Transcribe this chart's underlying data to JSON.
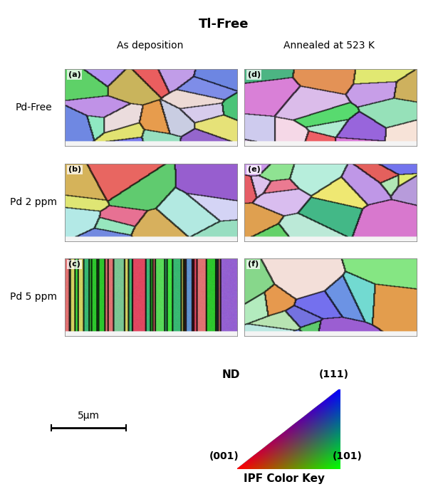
{
  "title": "Tl-Free",
  "col_labels": [
    "As deposition",
    "Annealed at 523 K"
  ],
  "row_labels": [
    "Pd-Free",
    "Pd 2 ppm",
    "Pd 5 ppm"
  ],
  "panel_labels": [
    "(a)",
    "(b)",
    "(c)",
    "(d)",
    "(e)",
    "(f)"
  ],
  "scale_bar_text": "5μm",
  "ipf_label": "ND",
  "ipf_corners": [
    "(111)",
    "(001)",
    "(101)"
  ],
  "ipf_color_key_label": "IPF Color Key",
  "background_color": "#ffffff",
  "title_fontsize": 13,
  "col_label_fontsize": 10,
  "row_label_fontsize": 10,
  "panel_label_fontsize": 8
}
